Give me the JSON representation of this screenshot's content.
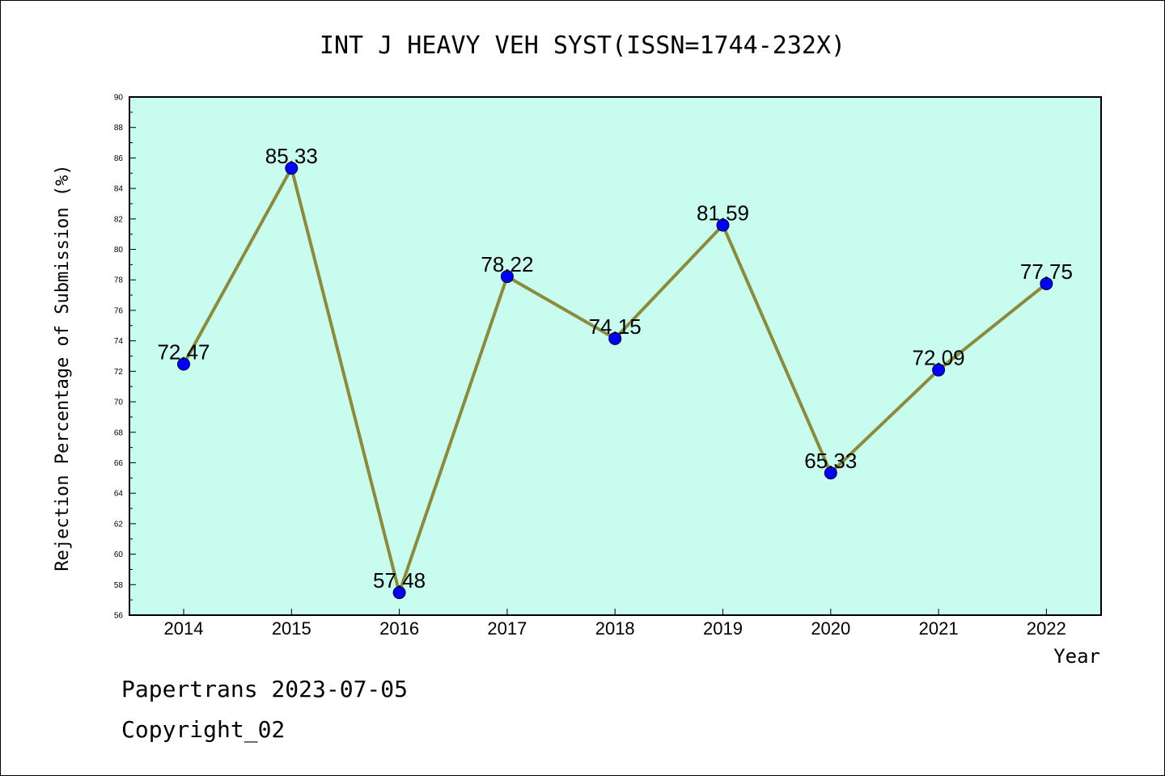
{
  "chart_data": {
    "type": "line",
    "title": "INT J HEAVY VEH SYST(ISSN=1744-232X)",
    "xlabel": "Year",
    "ylabel": "Rejection Percentage of Submission (%)",
    "categories": [
      "2014",
      "2015",
      "2016",
      "2017",
      "2018",
      "2019",
      "2020",
      "2021",
      "2022"
    ],
    "series": [
      {
        "values": [
          72.47,
          85.33,
          57.48,
          78.22,
          74.15,
          81.59,
          65.33,
          72.09,
          77.75
        ]
      }
    ],
    "data_labels": [
      "72.47",
      "85.33",
      "57.48",
      "78.22",
      "74.15",
      "81.59",
      "65.33",
      "72.09",
      "77.75"
    ],
    "ylim": [
      56,
      90
    ],
    "yticks": [
      56,
      58,
      60,
      62,
      64,
      66,
      68,
      70,
      72,
      74,
      76,
      78,
      80,
      82,
      84,
      86,
      88,
      90
    ],
    "grid": false,
    "colors": {
      "plot_background": "#c8fcee",
      "line": "#8b8b3b",
      "marker": "#0000ff"
    }
  },
  "footer": {
    "line1": "Papertrans 2023-07-05",
    "line2": "Copyright_02"
  }
}
